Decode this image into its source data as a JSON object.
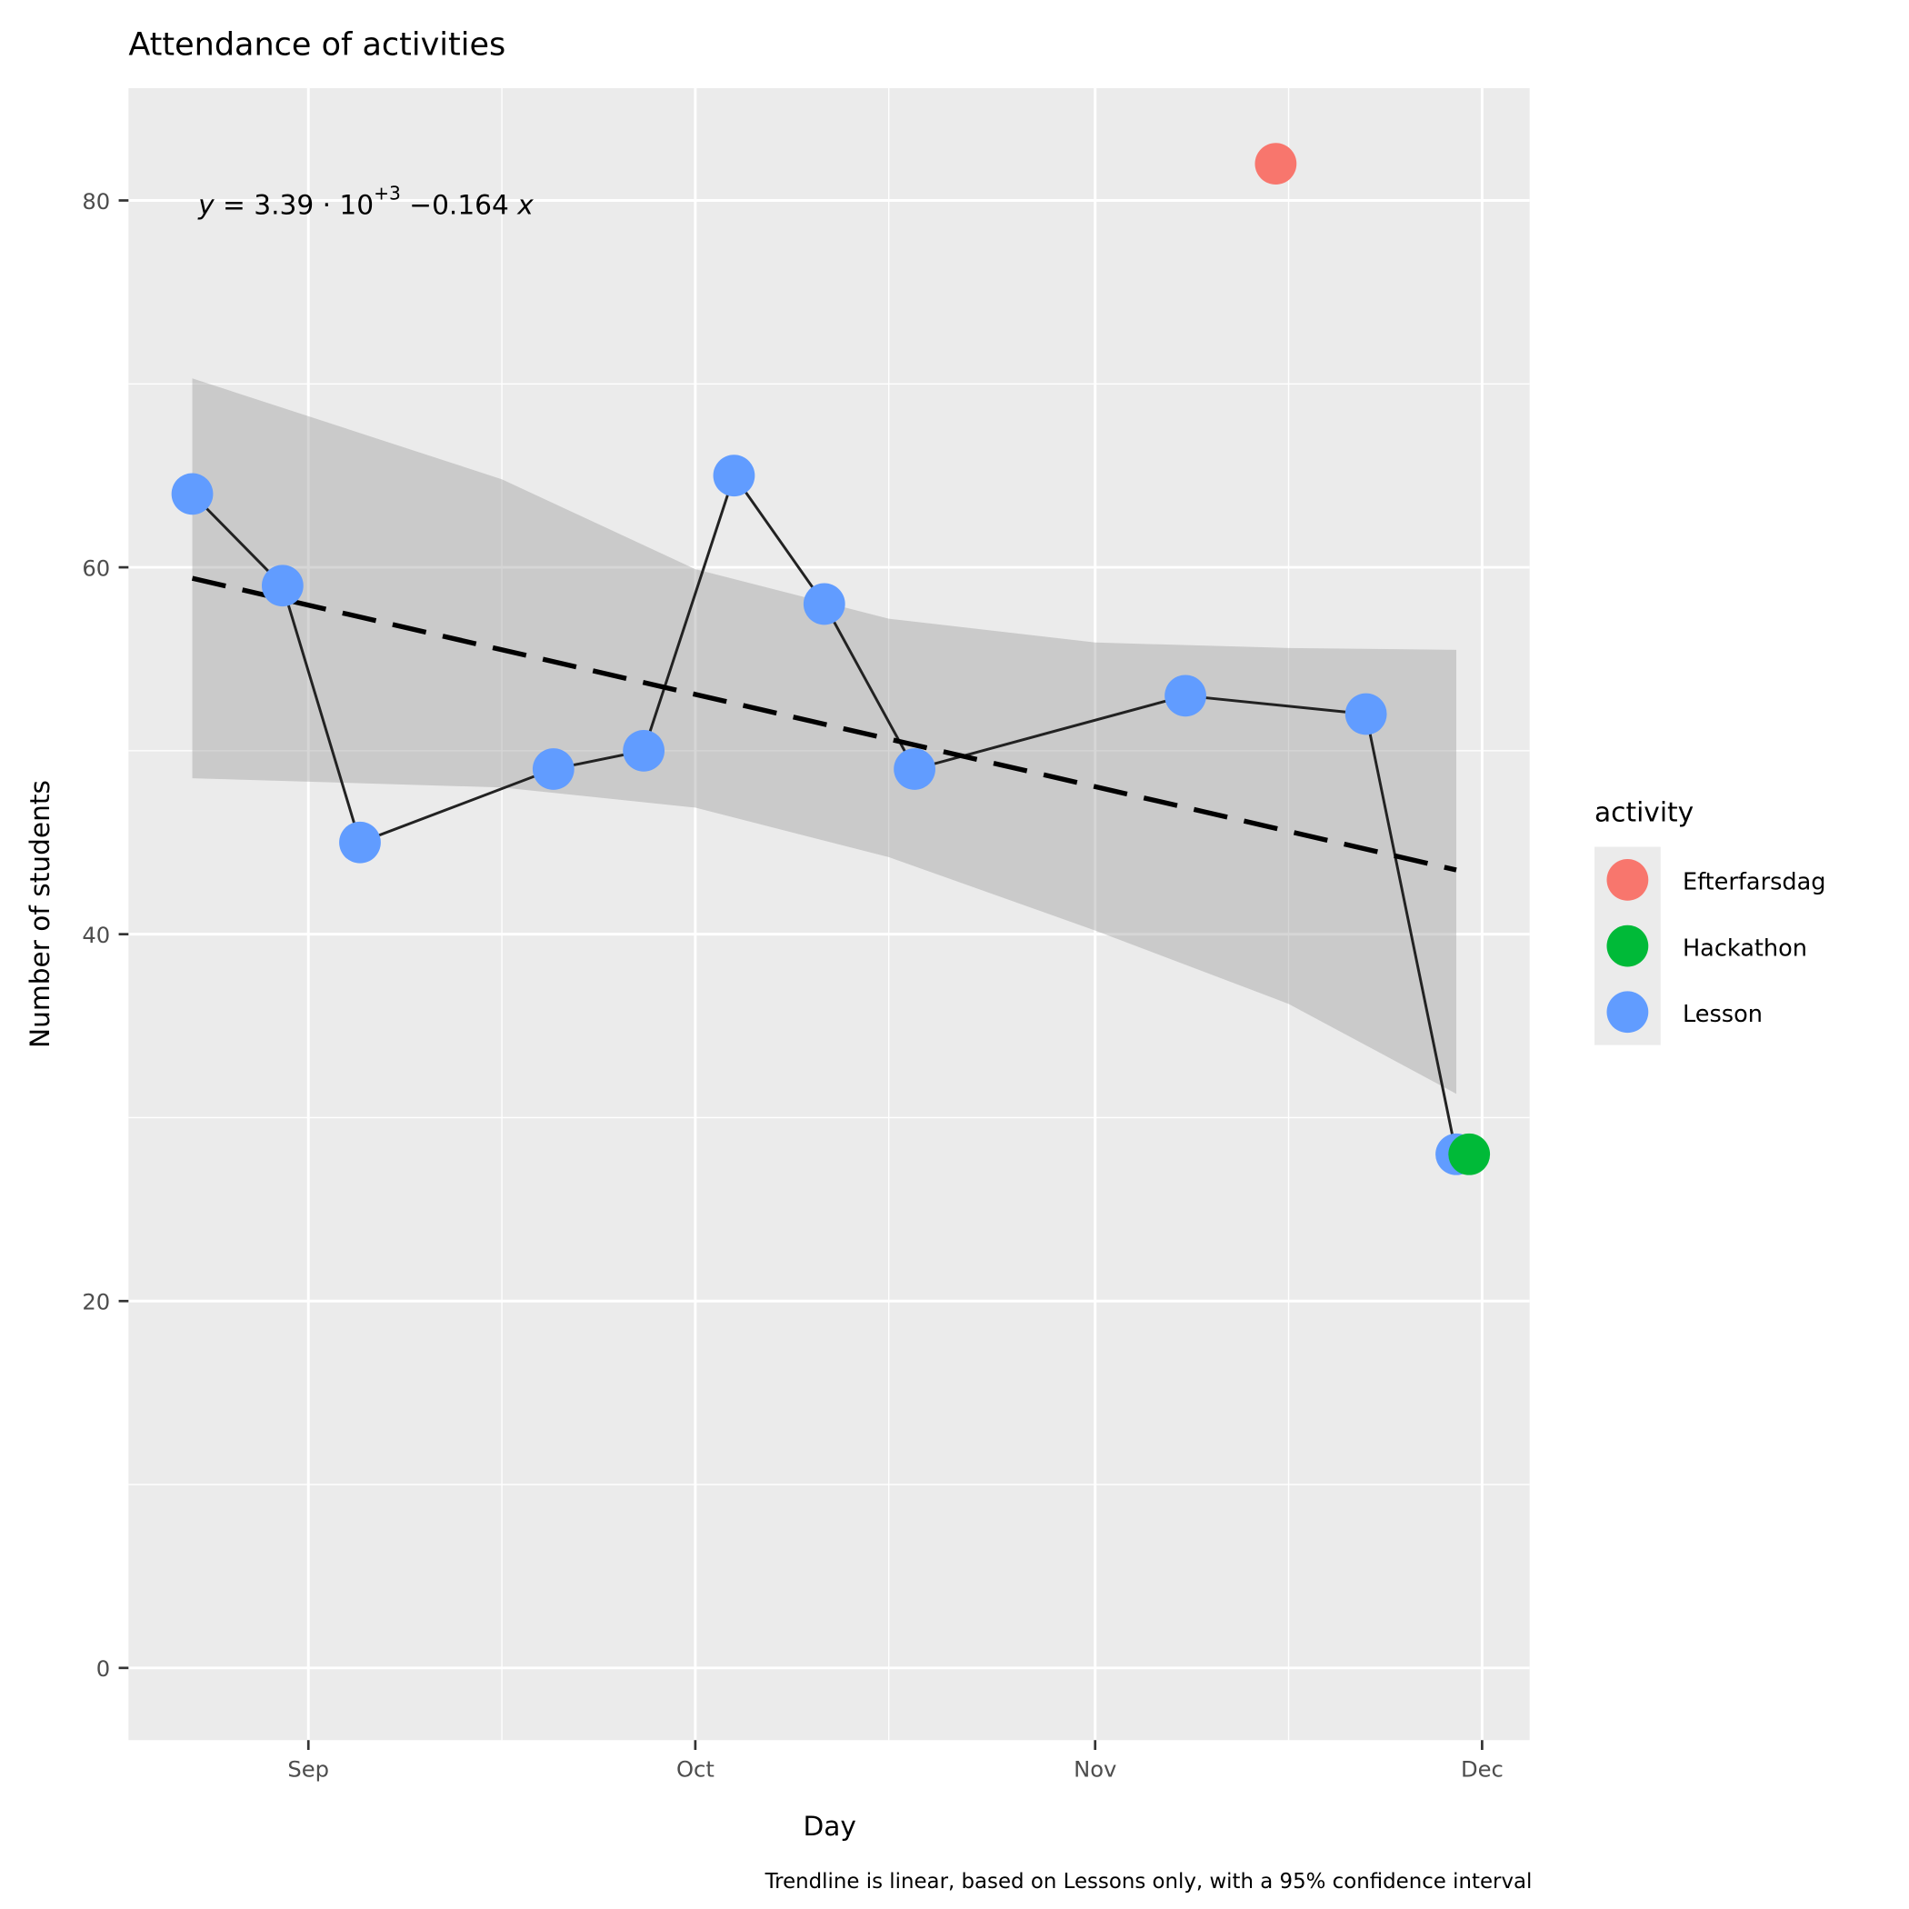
{
  "chart_data": {
    "type": "scatter",
    "title": "Attendance of activities",
    "xlabel": "Day",
    "ylabel": "Number of students",
    "caption": "Trendline is linear, based on Lessons only, with a 95% confidence interval",
    "equation": {
      "lhs": "y",
      "eq": "=",
      "coef": "3.39 · 10",
      "exp": "+3",
      "slope": "−0.164",
      "var": "x"
    },
    "x_ticks": [
      {
        "date": "09-01",
        "label": "Sep"
      },
      {
        "date": "10-01",
        "label": "Oct"
      },
      {
        "date": "11-01",
        "label": "Nov"
      },
      {
        "date": "12-01",
        "label": "Dec"
      }
    ],
    "x_minor": [
      "09-16",
      "10-16",
      "11-16"
    ],
    "y_ticks": [
      0,
      20,
      40,
      60,
      80
    ],
    "ylim": [
      -4,
      86
    ],
    "grid": true,
    "legend": {
      "title": "activity",
      "position": "right",
      "entries": [
        {
          "name": "Efterfarsdag",
          "color": "#F8766D"
        },
        {
          "name": "Hackathon",
          "color": "#00BA38"
        },
        {
          "name": "Lesson",
          "color": "#619CFF"
        }
      ]
    },
    "series": [
      {
        "name": "Lesson",
        "color": "#619CFF",
        "connected": true,
        "points": [
          {
            "x": "08-23",
            "y": 64
          },
          {
            "x": "08-30",
            "y": 59
          },
          {
            "x": "09-05",
            "y": 45
          },
          {
            "x": "09-20",
            "y": 49
          },
          {
            "x": "09-27",
            "y": 50
          },
          {
            "x": "10-04",
            "y": 65
          },
          {
            "x": "10-11",
            "y": 58
          },
          {
            "x": "10-18",
            "y": 49
          },
          {
            "x": "11-08",
            "y": 53
          },
          {
            "x": "11-22",
            "y": 52
          },
          {
            "x": "11-29",
            "y": 28
          }
        ]
      },
      {
        "name": "Efterfarsdag",
        "color": "#F8766D",
        "connected": false,
        "points": [
          {
            "x": "11-15",
            "y": 82
          }
        ]
      },
      {
        "name": "Hackathon",
        "color": "#00BA38",
        "connected": false,
        "points": [
          {
            "x": "11-30",
            "y": 28
          }
        ]
      }
    ],
    "trend": {
      "style": "dashed",
      "points": [
        {
          "x": "08-23",
          "y": 59.4
        },
        {
          "x": "11-29",
          "y": 43.5
        }
      ]
    },
    "confidence_band": [
      {
        "x": "08-23",
        "lower": 48.5,
        "upper": 70.3
      },
      {
        "x": "09-16",
        "lower": 48.0,
        "upper": 64.8
      },
      {
        "x": "10-01",
        "lower": 46.9,
        "upper": 59.9
      },
      {
        "x": "10-16",
        "lower": 44.2,
        "upper": 57.2
      },
      {
        "x": "11-01",
        "lower": 40.2,
        "upper": 55.9
      },
      {
        "x": "11-16",
        "lower": 36.2,
        "upper": 55.6
      },
      {
        "x": "11-29",
        "lower": 31.3,
        "upper": 55.5
      }
    ]
  }
}
